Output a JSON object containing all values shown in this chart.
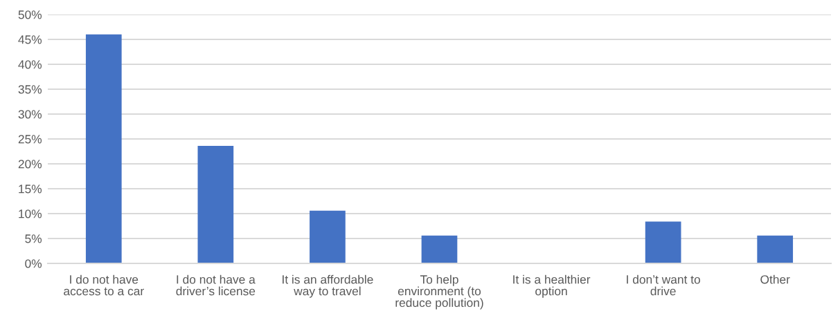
{
  "chart_data": {
    "type": "bar",
    "categories": [
      "I do not have\naccess to a car",
      "I do not have a\ndriver’s license",
      "It is an affordable\nway to travel",
      "To help\nenvironment (to\nreduce pollution)",
      "It is a healthier\noption",
      "I don’t want to\ndrive",
      "Other"
    ],
    "values": [
      46.0,
      23.6,
      10.6,
      5.6,
      0,
      8.4,
      5.6
    ],
    "color": "#4472c4",
    "ylim": [
      0,
      50
    ],
    "yticks": [
      {
        "value": 0,
        "label": "0%"
      },
      {
        "value": 5,
        "label": "5%"
      },
      {
        "value": 10,
        "label": "10%"
      },
      {
        "value": 15,
        "label": "15%"
      },
      {
        "value": 20,
        "label": "20%"
      },
      {
        "value": 25,
        "label": "25%"
      },
      {
        "value": 30,
        "label": "30%"
      },
      {
        "value": 35,
        "label": "35%"
      },
      {
        "value": 40,
        "label": "40%"
      },
      {
        "value": 45,
        "label": "45%"
      },
      {
        "value": 50,
        "label": "50%"
      }
    ],
    "grid": "y",
    "legend": false
  }
}
